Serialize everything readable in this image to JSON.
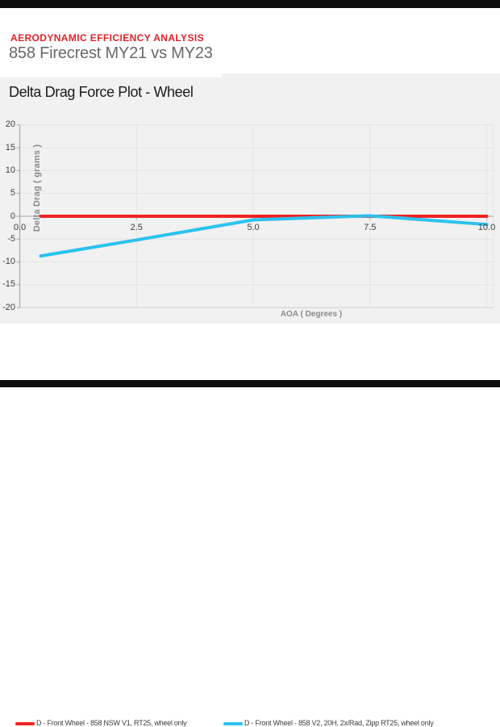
{
  "header": {
    "kicker": "AERODYNAMIC EFFICIENCY ANALYSIS",
    "title": "858 Firecrest MY21 vs MY23"
  },
  "chart": {
    "title": "Delta Drag Force Plot - Wheel"
  },
  "chart_data": {
    "type": "line",
    "title": "Delta Drag Force Plot - Wheel",
    "xlabel": "AOA ( Degrees )",
    "ylabel": "Delta Drag ( grams )",
    "xlim": [
      0,
      10.15
    ],
    "ylim": [
      -20,
      20
    ],
    "x_ticks": [
      0.0,
      2.5,
      5.0,
      7.5,
      10.0
    ],
    "x_tick_labels": [
      "0.0",
      "2.5",
      "5.0",
      "7.5",
      "10.0"
    ],
    "y_ticks": [
      20,
      15,
      10,
      5,
      0,
      -5,
      -10,
      -15,
      -20
    ],
    "y_tick_labels": [
      "20",
      "15",
      "10",
      "5",
      "0",
      "-5",
      "-10",
      "-15",
      "-20"
    ],
    "grid": true,
    "legend_position": "bottom",
    "series": [
      {
        "name": "D - Front Wheel - 858 NSW V1, RT25, wheel only",
        "color": "#ee2424",
        "x": [
          0.45,
          2.5,
          5.0,
          7.5,
          10.0
        ],
        "values": [
          0,
          0,
          0,
          0,
          0
        ]
      },
      {
        "name": "D - Front Wheel - 858 V2, 20H, 2x/Rad, Zipp RT25, wheel only",
        "color": "#2cc2ee",
        "x": [
          0.45,
          2.5,
          5.0,
          7.5,
          10.0
        ],
        "values": [
          -8.7,
          -5.2,
          -0.8,
          0.1,
          -1.8
        ]
      }
    ]
  },
  "colors": {
    "top_bottom_bars": "#0c0c0c",
    "kicker_red": "#e32127",
    "subtitle_gray": "#686868",
    "chart_band_bg": "#f1f1f1",
    "gridline": "#e3e3e3",
    "axis_line": "#a6a6a6",
    "zero_line": "#b3b3b3",
    "bottom_line": "#cfcfcf",
    "series_red": "#ee2424",
    "series_cyan": "#2cc2ee"
  }
}
